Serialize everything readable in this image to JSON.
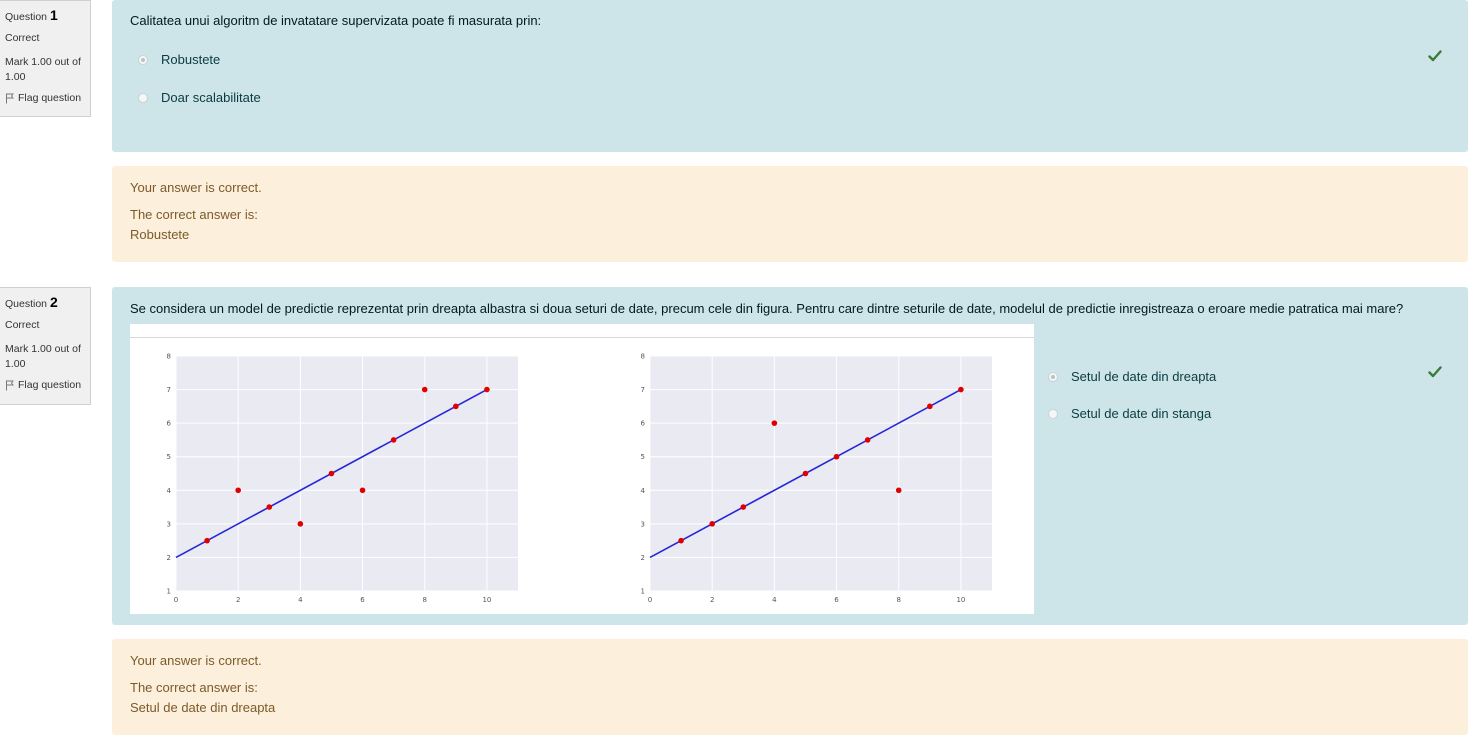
{
  "questions": [
    {
      "number_label": "Question",
      "number": "1",
      "state": "Correct",
      "grade": "Mark 1.00 out of 1.00",
      "flag_label": "Flag question",
      "text": "Calitatea unui algoritm de invatatare supervizata poate fi masurata prin:",
      "options": [
        {
          "label": "Robustete",
          "selected": true
        },
        {
          "label": "Doar scalabilitate",
          "selected": false
        }
      ],
      "feedback": {
        "result": "Your answer is correct.",
        "correct_intro": "The correct answer is:",
        "correct_value": "Robustete"
      }
    },
    {
      "number_label": "Question",
      "number": "2",
      "state": "Correct",
      "grade": "Mark 1.00 out of 1.00",
      "flag_label": "Flag question",
      "text": "Se considera un model de predictie reprezentat prin dreapta albastra si doua seturi de date, precum cele din figura. Pentru care dintre seturile de date, modelul de predictie inregistreaza o eroare medie patratica mai mare?",
      "options": [
        {
          "label": "Setul de date din dreapta",
          "selected": true
        },
        {
          "label": "Setul de date din stanga",
          "selected": false
        }
      ],
      "feedback": {
        "result": "Your answer is correct.",
        "correct_intro": "The correct answer is:",
        "correct_value": "Setul de date din dreapta"
      }
    }
  ],
  "colors": {
    "question_bg": "#cde5e8",
    "feedback_bg": "#fcefdc",
    "check": "#3a7a3a",
    "line": "#2626d9",
    "points": "#e00000",
    "plot_bg": "#eaeaf2"
  },
  "chart_data": [
    {
      "type": "scatter",
      "title": "",
      "xlabel": "",
      "ylabel": "",
      "xlim": [
        0,
        11
      ],
      "ylim": [
        1,
        8
      ],
      "xticks": [
        0,
        2,
        4,
        6,
        8,
        10
      ],
      "yticks": [
        1,
        2,
        3,
        4,
        5,
        6,
        7,
        8
      ],
      "grid": true,
      "line": {
        "x": [
          0,
          10
        ],
        "y": [
          2,
          7
        ]
      },
      "x": [
        1,
        2,
        3,
        4,
        5,
        6,
        7,
        8,
        9,
        10
      ],
      "y": [
        2.5,
        4,
        3.5,
        3,
        4.5,
        4,
        5.5,
        7,
        6.5,
        7
      ]
    },
    {
      "type": "scatter",
      "title": "",
      "xlabel": "",
      "ylabel": "",
      "xlim": [
        0,
        11
      ],
      "ylim": [
        1,
        8
      ],
      "xticks": [
        0,
        2,
        4,
        6,
        8,
        10
      ],
      "yticks": [
        1,
        2,
        3,
        4,
        5,
        6,
        7,
        8
      ],
      "grid": true,
      "line": {
        "x": [
          0,
          10
        ],
        "y": [
          2,
          7
        ]
      },
      "x": [
        1,
        2,
        3,
        4,
        5,
        6,
        7,
        8,
        9,
        10
      ],
      "y": [
        2.5,
        3,
        3.5,
        6,
        4.5,
        5,
        5.5,
        4,
        6.5,
        7
      ]
    }
  ]
}
